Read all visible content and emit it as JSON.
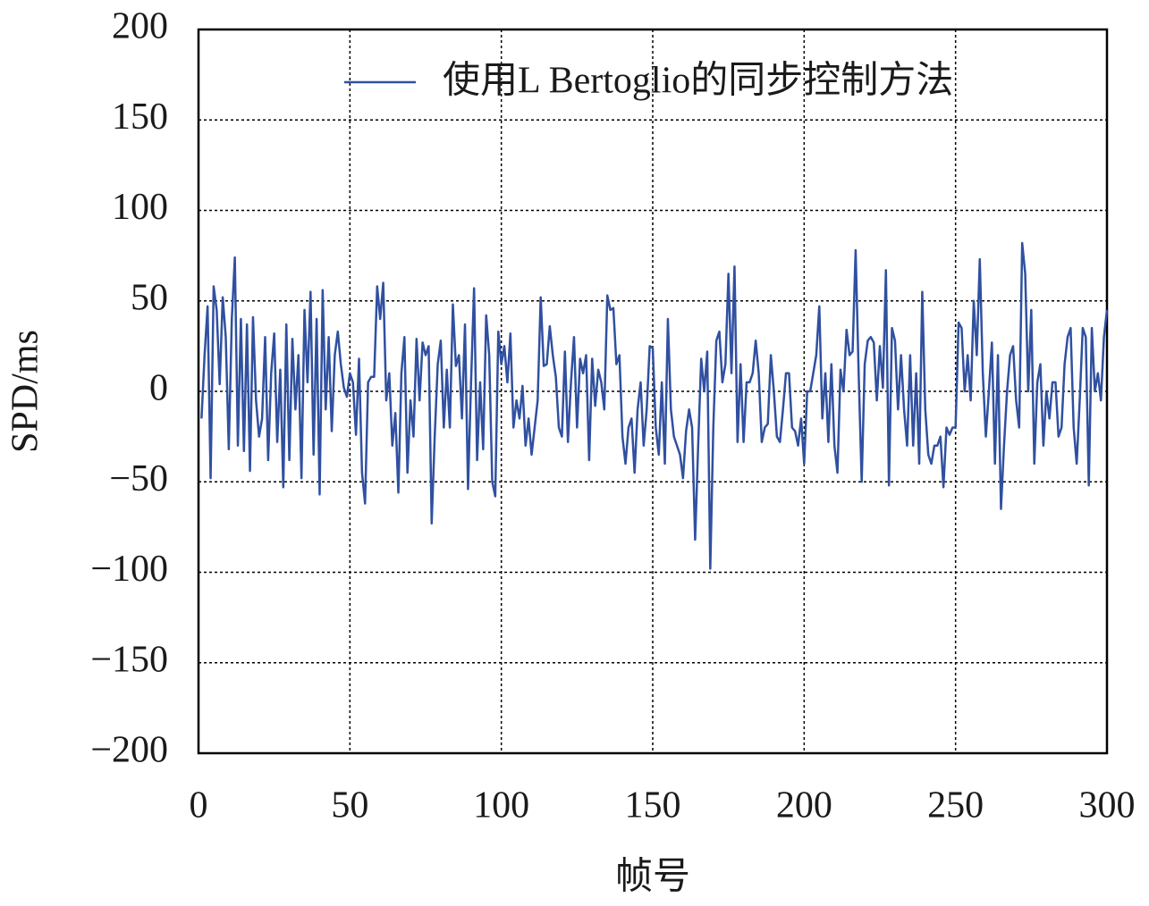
{
  "chart_data": {
    "type": "line",
    "xlabel": "帧号",
    "ylabel": "SPD/ms",
    "x": [
      1,
      2,
      3,
      4,
      5,
      6,
      7,
      8,
      9,
      10,
      11,
      12,
      13,
      14,
      15,
      16,
      17,
      18,
      19,
      20,
      21,
      22,
      23,
      24,
      25,
      26,
      27,
      28,
      29,
      30,
      31,
      32,
      33,
      34,
      35,
      36,
      37,
      38,
      39,
      40,
      41,
      42,
      43,
      44,
      45,
      46,
      47,
      48,
      49,
      50,
      51,
      52,
      53,
      54,
      55,
      56,
      57,
      58,
      59,
      60,
      61,
      62,
      63,
      64,
      65,
      66,
      67,
      68,
      69,
      70,
      71,
      72,
      73,
      74,
      75,
      76,
      77,
      78,
      79,
      80,
      81,
      82,
      83,
      84,
      85,
      86,
      87,
      88,
      89,
      90,
      91,
      92,
      93,
      94,
      95,
      96,
      97,
      98,
      99,
      100,
      101,
      102,
      103,
      104,
      105,
      106,
      107,
      108,
      109,
      110,
      111,
      112,
      113,
      114,
      115,
      116,
      117,
      118,
      119,
      120,
      121,
      122,
      123,
      124,
      125,
      126,
      127,
      128,
      129,
      130,
      131,
      132,
      133,
      134,
      135,
      136,
      137,
      138,
      139,
      140,
      141,
      142,
      143,
      144,
      145,
      146,
      147,
      148,
      149,
      150,
      151,
      152,
      153,
      154,
      155,
      156,
      157,
      158,
      159,
      160,
      161,
      162,
      163,
      164,
      165,
      166,
      167,
      168,
      169,
      170,
      171,
      172,
      173,
      174,
      175,
      176,
      177,
      178,
      179,
      180,
      181,
      182,
      183,
      184,
      185,
      186,
      187,
      188,
      189,
      190,
      191,
      192,
      193,
      194,
      195,
      196,
      197,
      198,
      199,
      200,
      201,
      202,
      203,
      204,
      205,
      206,
      207,
      208,
      209,
      210,
      211,
      212,
      213,
      214,
      215,
      216,
      217,
      218,
      219,
      220,
      221,
      222,
      223,
      224,
      225,
      226,
      227,
      228,
      229,
      230,
      231,
      232,
      233,
      234,
      235,
      236,
      237,
      238,
      239,
      240,
      241,
      242,
      243,
      244,
      245,
      246,
      247,
      248,
      249,
      250,
      251,
      252,
      253,
      254,
      255,
      256,
      257,
      258,
      259,
      260,
      261,
      262,
      263,
      264,
      265,
      266,
      267,
      268,
      269,
      270,
      271,
      272,
      273,
      274,
      275,
      276,
      277,
      278,
      279,
      280,
      281,
      282,
      283,
      284,
      285,
      286,
      287,
      288,
      289,
      290,
      291,
      292,
      293,
      294,
      295,
      296,
      297,
      298,
      299,
      300
    ],
    "series": [
      {
        "name": "使用L Bertoglio的同步控制方法",
        "color": "#3050a0",
        "values": [
          -15,
          20,
          47,
          -48,
          58,
          45,
          4,
          52,
          30,
          -32,
          40,
          74,
          -30,
          40,
          -33,
          37,
          -44,
          41,
          -5,
          -25,
          -15,
          30,
          -38,
          10,
          32,
          -28,
          12,
          -53,
          37,
          -38,
          29,
          -10,
          20,
          -48,
          45,
          5,
          55,
          -35,
          40,
          -57,
          56,
          -10,
          30,
          -22,
          20,
          33,
          15,
          2,
          -3,
          10,
          5,
          -24,
          18,
          -45,
          -62,
          5,
          8,
          8,
          58,
          40,
          60,
          -5,
          10,
          -30,
          -12,
          -56,
          10,
          30,
          -45,
          -5,
          -25,
          29,
          -5,
          27,
          20,
          25,
          -73,
          -25,
          15,
          28,
          -20,
          12,
          -20,
          48,
          14,
          20,
          -15,
          37,
          -54,
          5,
          57,
          -38,
          5,
          -32,
          42,
          20,
          -50,
          -58,
          33,
          15,
          25,
          5,
          32,
          -20,
          -5,
          -15,
          3,
          -30,
          -15,
          -35,
          -20,
          -5,
          52,
          14,
          15,
          36,
          20,
          8,
          -20,
          -25,
          22,
          -28,
          5,
          30,
          -20,
          18,
          10,
          20,
          -38,
          18,
          -8,
          12,
          5,
          -10,
          53,
          45,
          46,
          15,
          20,
          -25,
          -40,
          -20,
          -15,
          -45,
          -10,
          5,
          -30,
          -10,
          25,
          24,
          -20,
          -35,
          5,
          -40,
          40,
          -10,
          -25,
          -30,
          -35,
          -48,
          -22,
          -10,
          -20,
          -82,
          -30,
          18,
          0,
          22,
          -98,
          -20,
          28,
          33,
          5,
          15,
          65,
          10,
          69,
          -28,
          15,
          -28,
          5,
          5,
          10,
          28,
          10,
          -28,
          -20,
          -18,
          20,
          0,
          -25,
          -28,
          -10,
          10,
          10,
          -20,
          -22,
          -30,
          -15,
          -40,
          0,
          0,
          10,
          20,
          47,
          -15,
          10,
          -28,
          15,
          -30,
          -45,
          12,
          0,
          34,
          20,
          22,
          78,
          10,
          -50,
          15,
          28,
          30,
          27,
          -5,
          25,
          2,
          67,
          -52,
          35,
          28,
          -10,
          20,
          -10,
          -30,
          20,
          -30,
          10,
          -40,
          55,
          -10,
          -35,
          -40,
          -30,
          -30,
          -25,
          -53,
          -20,
          -24,
          -20,
          -20,
          38,
          35,
          0,
          20,
          -5,
          50,
          20,
          73,
          10,
          -25,
          0,
          27,
          -40,
          20,
          -65,
          -30,
          0,
          20,
          25,
          -5,
          -20,
          82,
          65,
          0,
          45,
          -40,
          5,
          15,
          -30,
          0,
          -15,
          5,
          5,
          -25,
          -20,
          15,
          30,
          35,
          -20,
          -40,
          -5,
          35,
          30,
          -52,
          35,
          0,
          10,
          -5,
          30,
          45
        ]
      }
    ],
    "xlim": [
      0,
      300
    ],
    "xticks": [
      0,
      50,
      100,
      150,
      200,
      250,
      300
    ],
    "ylim": [
      -200,
      200
    ],
    "yticks": [
      {
        "value": -200,
        "label": "−200"
      },
      {
        "value": -150,
        "label": "−150"
      },
      {
        "value": -100,
        "label": "−100"
      },
      {
        "value": -50,
        "label": "−50"
      },
      0,
      50,
      100,
      150,
      200
    ],
    "grid": true,
    "legend": "upper right"
  }
}
